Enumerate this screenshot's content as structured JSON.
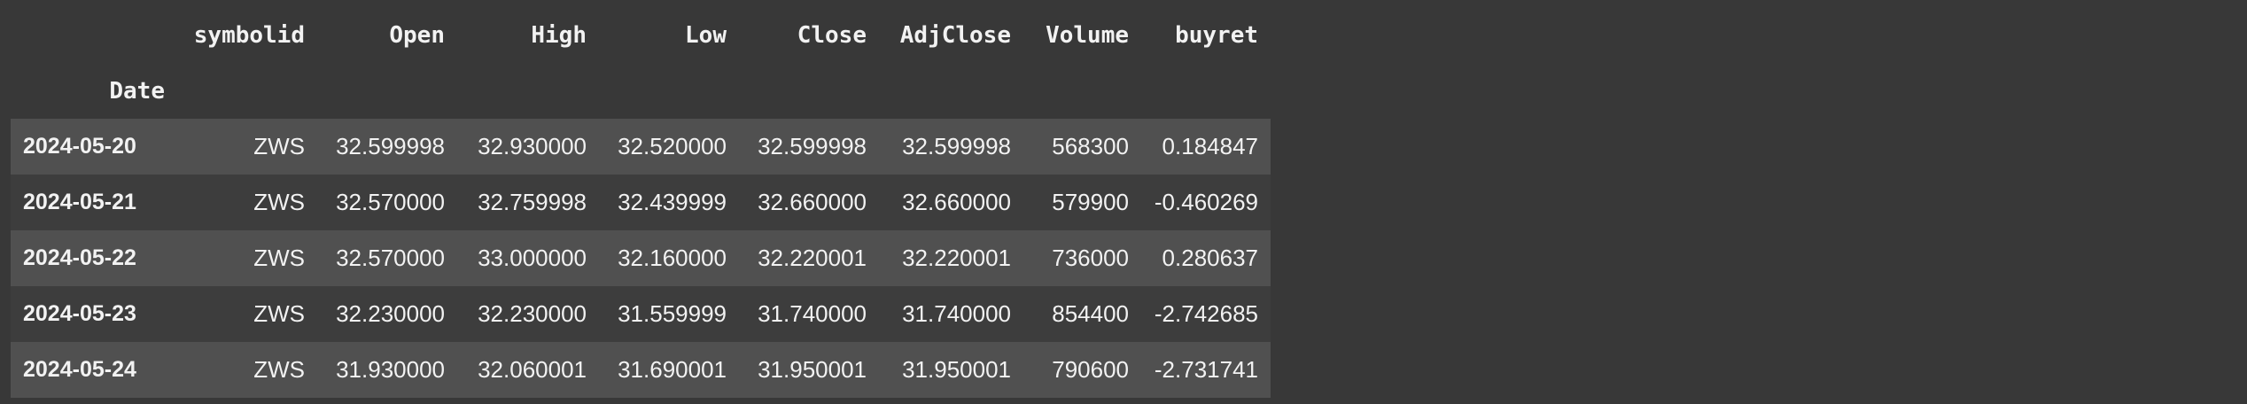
{
  "table": {
    "columns": [
      "symbolid",
      "Open",
      "High",
      "Low",
      "Close",
      "AdjClose",
      "Volume",
      "buyret"
    ],
    "index_name": "Date",
    "rows": [
      {
        "date": "2024-05-20",
        "symbolid": "ZWS",
        "open": "32.599998",
        "high": "32.930000",
        "low": "32.520000",
        "close": "32.599998",
        "adjclose": "32.599998",
        "volume": "568300",
        "buyret": "0.184847"
      },
      {
        "date": "2024-05-21",
        "symbolid": "ZWS",
        "open": "32.570000",
        "high": "32.759998",
        "low": "32.439999",
        "close": "32.660000",
        "adjclose": "32.660000",
        "volume": "579900",
        "buyret": "-0.460269"
      },
      {
        "date": "2024-05-22",
        "symbolid": "ZWS",
        "open": "32.570000",
        "high": "33.000000",
        "low": "32.160000",
        "close": "32.220001",
        "adjclose": "32.220001",
        "volume": "736000",
        "buyret": "0.280637"
      },
      {
        "date": "2024-05-23",
        "symbolid": "ZWS",
        "open": "32.230000",
        "high": "32.230000",
        "low": "31.559999",
        "close": "31.740000",
        "adjclose": "31.740000",
        "volume": "854400",
        "buyret": "-2.742685"
      },
      {
        "date": "2024-05-24",
        "symbolid": "ZWS",
        "open": "31.930000",
        "high": "32.060001",
        "low": "31.690001",
        "close": "31.950001",
        "adjclose": "31.950001",
        "volume": "790600",
        "buyret": "-2.731741"
      }
    ]
  },
  "colors": {
    "background": "#383838",
    "row_highlight": "#505050",
    "row_normal": "#3d3d3d",
    "text": "#f2f2f2"
  }
}
